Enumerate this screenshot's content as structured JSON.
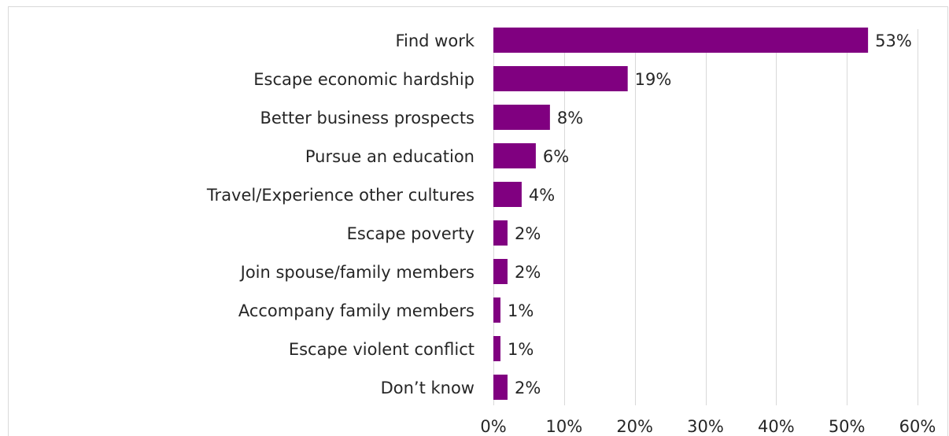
{
  "colors": {
    "bar": "#800080",
    "grid": "#d9d9d9",
    "text": "#262626"
  },
  "chart_data": {
    "type": "bar",
    "orientation": "horizontal",
    "categories": [
      "Find work",
      "Escape economic hardship",
      "Better business prospects",
      "Pursue an education",
      "Travel/Experience other cultures",
      "Escape poverty",
      "Join spouse/family members",
      "Accompany family members",
      "Escape violent conflict",
      "Don’t know"
    ],
    "values": [
      53,
      19,
      8,
      6,
      4,
      2,
      2,
      1,
      1,
      2
    ],
    "value_labels": [
      "53%",
      "19%",
      "8%",
      "6%",
      "4%",
      "2%",
      "2%",
      "1%",
      "1%",
      "2%"
    ],
    "xlim": [
      0,
      60
    ],
    "xticks": [
      0,
      10,
      20,
      30,
      40,
      50,
      60
    ],
    "xtick_labels": [
      "0%",
      "10%",
      "20%",
      "30%",
      "40%",
      "50%",
      "60%"
    ],
    "grid": true,
    "legend": "none"
  }
}
